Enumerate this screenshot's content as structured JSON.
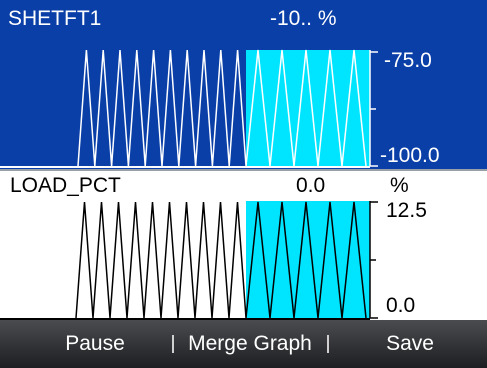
{
  "graph1": {
    "name": "SHETFT1",
    "value": "-10.. %",
    "max": "-75.0",
    "min": "-100.0",
    "colors": {
      "bg": "#0a3fa8",
      "fill": "#00e5ff",
      "line": "#ffffff"
    }
  },
  "graph2": {
    "name": "LOAD_PCT",
    "value": "0.0",
    "unit": "%",
    "max": "12.5",
    "min": "0.0",
    "colors": {
      "bg": "#ffffff",
      "fill": "#00e5ff",
      "line": "#000000"
    }
  },
  "toolbar": {
    "pause": "Pause",
    "merge": "Merge Graph",
    "save": "Save"
  }
}
